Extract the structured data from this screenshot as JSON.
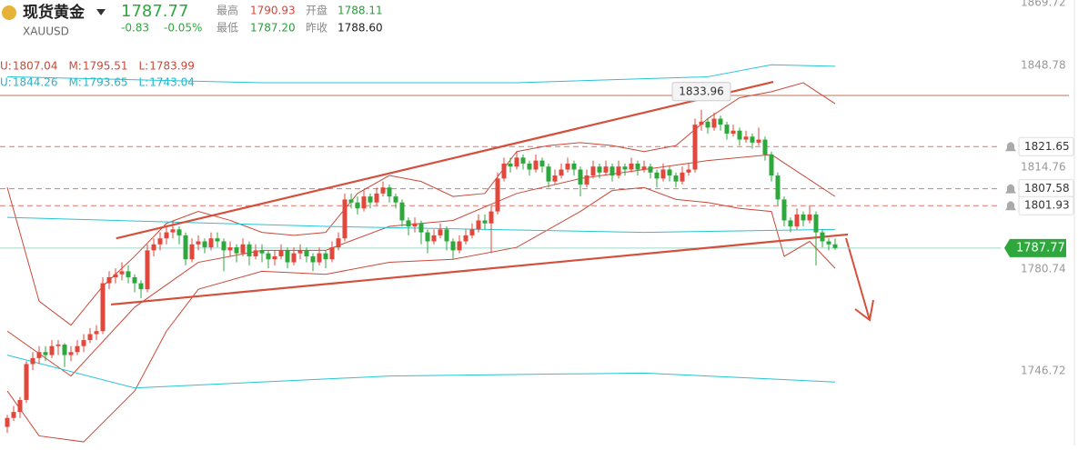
{
  "header": {
    "name": "现货黄金",
    "symbol": "XAUUSD",
    "change": -0.83,
    "change_pct": "-0.05%",
    "stats": [
      {
        "label": "最高",
        "value": "1790.93",
        "color": "#d9433a"
      },
      {
        "label": "开盘",
        "value": "1788.11",
        "color": "#2a9d3c"
      },
      {
        "label": "最低",
        "value": "1787.20",
        "color": "#2a9d3c"
      },
      {
        "label": "昨收",
        "value": "1788.60",
        "color": "#222222"
      }
    ]
  },
  "chart_data": {
    "type": "candlestick",
    "last_price": 1787.77,
    "up_color": "#e2473b",
    "down_color": "#2ea83d",
    "ylim": [
      1721.8,
      1870.65
    ],
    "yticks": [
      1746.72,
      1780.74,
      1814.76,
      1848.78,
      1869.72
    ],
    "legend": [
      {
        "color": "#c8493a",
        "items": [
          {
            "label": "U:",
            "value": 1807.04
          },
          {
            "label": "M:",
            "value": 1795.51
          },
          {
            "label": "L:",
            "value": 1783.99
          }
        ]
      },
      {
        "color": "#27b4c8",
        "items": [
          {
            "label": "U:",
            "value": 1844.26
          },
          {
            "label": "M:",
            "value": 1793.65
          },
          {
            "label": "L:",
            "value": 1743.04
          }
        ]
      }
    ],
    "candles": [
      [
        1728,
        1732,
        1726,
        1731
      ],
      [
        1731,
        1735,
        1730,
        1733
      ],
      [
        1733,
        1738,
        1731,
        1737
      ],
      [
        1737,
        1750,
        1736,
        1749
      ],
      [
        1749,
        1753,
        1747,
        1751
      ],
      [
        1751,
        1755,
        1749,
        1753
      ],
      [
        1753,
        1755,
        1750,
        1752
      ],
      [
        1752,
        1757,
        1751,
        1755
      ],
      [
        1755,
        1757,
        1752,
        1755.5
      ],
      [
        1755.5,
        1756,
        1748,
        1752
      ],
      [
        1752,
        1755,
        1750,
        1753
      ],
      [
        1753,
        1757,
        1752,
        1755
      ],
      [
        1755,
        1759,
        1753,
        1757
      ],
      [
        1757,
        1761,
        1756,
        1759
      ],
      [
        1759,
        1762,
        1757,
        1760
      ],
      [
        1760,
        1778,
        1759,
        1776
      ],
      [
        1776,
        1780,
        1774,
        1778
      ],
      [
        1778,
        1781,
        1776,
        1779
      ],
      [
        1779,
        1783,
        1777,
        1780
      ],
      [
        1780,
        1782,
        1776,
        1778
      ],
      [
        1778,
        1779,
        1773,
        1776
      ],
      [
        1776,
        1777,
        1771,
        1774
      ],
      [
        1774,
        1789,
        1773,
        1787
      ],
      [
        1787,
        1791,
        1785,
        1789
      ],
      [
        1789,
        1793,
        1787,
        1791
      ],
      [
        1791,
        1795,
        1789,
        1793
      ],
      [
        1793,
        1797,
        1791,
        1794
      ],
      [
        1794,
        1795,
        1789,
        1792
      ],
      [
        1792,
        1793,
        1782,
        1784
      ],
      [
        1784,
        1791,
        1783,
        1789
      ],
      [
        1789,
        1792,
        1787,
        1790
      ],
      [
        1790,
        1791,
        1786,
        1788
      ],
      [
        1788,
        1793,
        1787,
        1791
      ],
      [
        1791,
        1793,
        1788,
        1790
      ],
      [
        1790,
        1791,
        1780,
        1787
      ],
      [
        1787,
        1790,
        1785,
        1788
      ],
      [
        1788,
        1789,
        1783,
        1786
      ],
      [
        1786,
        1791,
        1785,
        1789
      ],
      [
        1789,
        1790,
        1782,
        1785
      ],
      [
        1785,
        1789,
        1784,
        1787
      ],
      [
        1787,
        1789,
        1783,
        1786
      ],
      [
        1786,
        1787,
        1781,
        1784
      ],
      [
        1784,
        1787,
        1782,
        1785
      ],
      [
        1785,
        1789,
        1784,
        1787
      ],
      [
        1787,
        1788,
        1781,
        1783
      ],
      [
        1783,
        1788,
        1782,
        1786
      ],
      [
        1786,
        1789,
        1784,
        1787
      ],
      [
        1787,
        1788,
        1783,
        1785
      ],
      [
        1785,
        1786,
        1780,
        1783
      ],
      [
        1783,
        1788,
        1782,
        1786
      ],
      [
        1786,
        1787,
        1781,
        1784
      ],
      [
        1784,
        1790,
        1783,
        1788
      ],
      [
        1788,
        1793,
        1787,
        1791
      ],
      [
        1791,
        1806,
        1790,
        1804
      ],
      [
        1804,
        1806,
        1801,
        1803
      ],
      [
        1803,
        1805,
        1799,
        1801
      ],
      [
        1801,
        1807,
        1800,
        1805
      ],
      [
        1805,
        1806,
        1801,
        1803
      ],
      [
        1803,
        1808,
        1802,
        1806
      ],
      [
        1806,
        1810,
        1805,
        1808
      ],
      [
        1808,
        1809,
        1803,
        1805
      ],
      [
        1805,
        1806,
        1801,
        1803
      ],
      [
        1803,
        1804,
        1795,
        1797
      ],
      [
        1797,
        1798,
        1792,
        1795
      ],
      [
        1795,
        1798,
        1793,
        1796
      ],
      [
        1796,
        1797,
        1789,
        1793
      ],
      [
        1793,
        1794,
        1786,
        1790
      ],
      [
        1790,
        1794,
        1789,
        1792
      ],
      [
        1792,
        1796,
        1791,
        1794
      ],
      [
        1794,
        1795,
        1787,
        1790
      ],
      [
        1790,
        1791,
        1784,
        1787
      ],
      [
        1787,
        1792,
        1786,
        1790
      ],
      [
        1790,
        1794,
        1789,
        1792
      ],
      [
        1792,
        1796,
        1791,
        1794
      ],
      [
        1794,
        1799,
        1793,
        1797
      ],
      [
        1797,
        1799,
        1794,
        1796
      ],
      [
        1796,
        1802,
        1786,
        1800
      ],
      [
        1800,
        1813,
        1799,
        1811
      ],
      [
        1811,
        1818,
        1810,
        1816
      ],
      [
        1816,
        1818,
        1813,
        1815
      ],
      [
        1815,
        1820,
        1814,
        1818
      ],
      [
        1818,
        1819,
        1814,
        1816
      ],
      [
        1816,
        1817,
        1812,
        1814
      ],
      [
        1814,
        1819,
        1813,
        1817
      ],
      [
        1817,
        1818,
        1813,
        1815
      ],
      [
        1815,
        1816,
        1808,
        1810
      ],
      [
        1810,
        1814,
        1809,
        1812
      ],
      [
        1812,
        1816,
        1811,
        1814
      ],
      [
        1814,
        1818,
        1813,
        1816
      ],
      [
        1816,
        1817,
        1812,
        1814
      ],
      [
        1814,
        1815,
        1805,
        1809
      ],
      [
        1809,
        1814,
        1808,
        1812
      ],
      [
        1812,
        1817,
        1811,
        1815
      ],
      [
        1815,
        1816,
        1811,
        1813
      ],
      [
        1813,
        1817,
        1812,
        1815
      ],
      [
        1815,
        1816,
        1810,
        1812
      ],
      [
        1812,
        1817,
        1811,
        1815
      ],
      [
        1815,
        1816,
        1812,
        1814
      ],
      [
        1814,
        1818,
        1813,
        1816
      ],
      [
        1816,
        1817,
        1812,
        1814
      ],
      [
        1814,
        1817,
        1813,
        1815
      ],
      [
        1815,
        1816,
        1811,
        1813
      ],
      [
        1813,
        1814,
        1808,
        1811
      ],
      [
        1811,
        1816,
        1810,
        1814
      ],
      [
        1814,
        1815,
        1810,
        1812
      ],
      [
        1812,
        1813,
        1808,
        1810
      ],
      [
        1810,
        1815,
        1809,
        1813
      ],
      [
        1813,
        1816,
        1812,
        1814
      ],
      [
        1814,
        1831,
        1813,
        1829
      ],
      [
        1829,
        1833.96,
        1827,
        1830
      ],
      [
        1830,
        1831,
        1826,
        1828
      ],
      [
        1828,
        1833,
        1827,
        1831
      ],
      [
        1831,
        1832,
        1827,
        1829
      ],
      [
        1829,
        1830,
        1824,
        1826
      ],
      [
        1826,
        1829,
        1825,
        1827
      ],
      [
        1827,
        1828,
        1822,
        1824
      ],
      [
        1824,
        1827,
        1823,
        1825
      ],
      [
        1825,
        1826,
        1821,
        1823
      ],
      [
        1823,
        1828,
        1822,
        1824
      ],
      [
        1824,
        1825,
        1817,
        1819
      ],
      [
        1819,
        1820,
        1810,
        1812
      ],
      [
        1812,
        1813,
        1802,
        1804
      ],
      [
        1804,
        1805,
        1795,
        1797
      ],
      [
        1797,
        1798,
        1793,
        1795
      ],
      [
        1795,
        1801,
        1794,
        1799
      ],
      [
        1799,
        1800,
        1795,
        1797
      ],
      [
        1797,
        1802,
        1796,
        1799
      ],
      [
        1799,
        1800,
        1782,
        1793
      ],
      [
        1793,
        1794,
        1788,
        1790
      ],
      [
        1790,
        1791,
        1787,
        1789
      ],
      [
        1789,
        1790.93,
        1787.2,
        1787.77
      ]
    ],
    "bands": [
      {
        "color": "#c8493a",
        "x": [
          0,
          5,
          10,
          15,
          20,
          25,
          30,
          35,
          40,
          45,
          50,
          55,
          60,
          65,
          70,
          75,
          80,
          85,
          90,
          95,
          100,
          105,
          110,
          115,
          120,
          125,
          130
        ],
        "values": [
          1808,
          1770,
          1762,
          1775,
          1785,
          1796,
          1800,
          1797,
          1793,
          1792,
          1793,
          1806,
          1812,
          1810,
          1805,
          1806,
          1820,
          1822,
          1823,
          1822,
          1820,
          1822,
          1831,
          1838,
          1840,
          1843,
          1836
        ]
      },
      {
        "color": "#c8493a",
        "x": [
          0,
          10,
          20,
          30,
          40,
          50,
          60,
          70,
          80,
          90,
          100,
          110,
          120,
          125,
          130
        ],
        "values": [
          1760,
          1745,
          1768,
          1783,
          1787,
          1787,
          1795,
          1797,
          1806,
          1811,
          1814,
          1817,
          1819,
          1812,
          1805
        ]
      },
      {
        "color": "#c8493a",
        "x": [
          0,
          5,
          12,
          20,
          25,
          30,
          40,
          50,
          60,
          70,
          80,
          90,
          95,
          100,
          105,
          110,
          115,
          120,
          122,
          126,
          130
        ],
        "values": [
          1740,
          1725,
          1723,
          1740,
          1760,
          1774,
          1780,
          1779,
          1783,
          1784,
          1788,
          1800,
          1807,
          1808,
          1804,
          1803,
          1801,
          1800,
          1785,
          1790,
          1781
        ]
      },
      {
        "color": "#27c4d4",
        "x": [
          0,
          40,
          80,
          110,
          120,
          130
        ],
        "values": [
          1845,
          1843,
          1843,
          1845,
          1849,
          1848.5
        ]
      },
      {
        "color": "#27c4d4",
        "x": [
          0,
          50,
          100,
          130
        ],
        "values": [
          1798,
          1795,
          1793,
          1794
        ]
      },
      {
        "color": "#27c4d4",
        "x": [
          0,
          20,
          60,
          100,
          130
        ],
        "values": [
          1752,
          1741,
          1745,
          1746,
          1743
        ]
      }
    ],
    "trendlines": [
      {
        "color": "#d4503c",
        "x": [
          17.1,
          120.3
        ],
        "values": [
          1791,
          1843.3
        ]
      },
      {
        "color": "#d4503c",
        "x": [
          16.3,
          132
        ],
        "values": [
          1768.9,
          1792.3
        ]
      }
    ],
    "reference_line": {
      "value": 1838.75,
      "color": "#c0705a"
    },
    "price_lines": [
      {
        "value": 1821.65,
        "alert": true
      },
      {
        "value": 1807.58,
        "alert": true
      },
      {
        "value": 1801.93,
        "alert": true
      }
    ]
  }
}
